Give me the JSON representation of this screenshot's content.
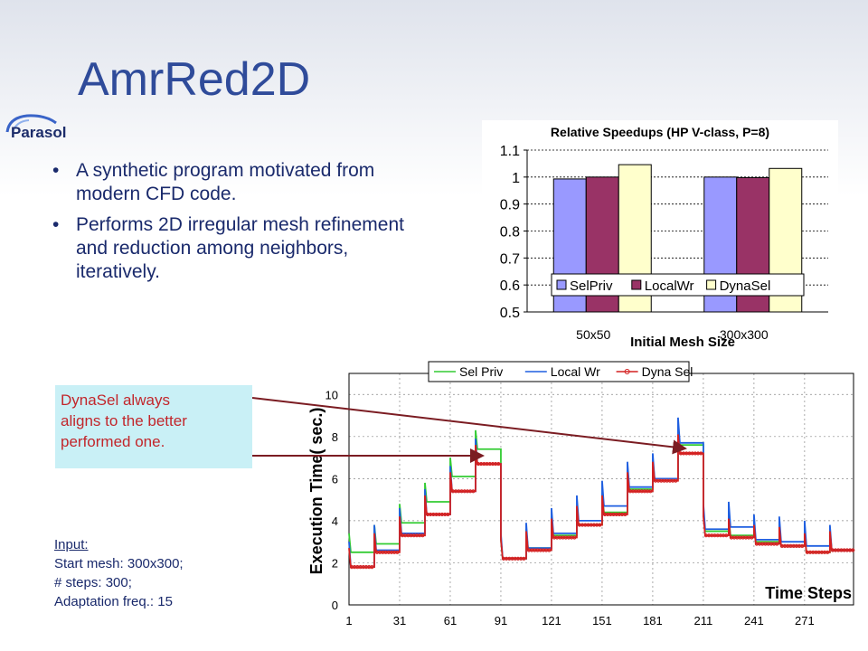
{
  "slide": {
    "title": "AmrRed2D",
    "logo_text": "Parasol",
    "bullets": [
      "A synthetic program motivated from modern CFD code.",
      "Performs 2D irregular mesh refinement and reduction among neighbors, iteratively."
    ],
    "bullet_char": "•",
    "callout": [
      "DynaSel always",
      "aligns to the better",
      "performed one."
    ],
    "input": {
      "title": "Input:",
      "lines": [
        "Start mesh: 300x300;",
        "# steps: 300;",
        "Adaptation freq.: 15"
      ]
    }
  },
  "colors": {
    "title": "#2f4b9a",
    "text": "#1a2a6c",
    "callout_bg": "#c9f0f6",
    "callout_text": "#c2262b",
    "arrow": "#7b1c22"
  },
  "chart_data": [
    {
      "type": "bar",
      "title": "Relative Speedups (HP V-class, P=8)",
      "xlabel": "Initial Mesh Size",
      "ylabel": "",
      "categories": [
        "50x50",
        "300x300"
      ],
      "series": [
        {
          "name": "SelPriv",
          "color": "#9999ff",
          "values": [
            0.993,
            1.0
          ]
        },
        {
          "name": "LocalWr",
          "color": "#993366",
          "values": [
            1.0,
            0.998
          ]
        },
        {
          "name": "DynaSel",
          "color": "#ffffcc",
          "values": [
            1.046,
            1.032
          ]
        }
      ],
      "ylim": [
        0.5,
        1.1
      ],
      "yticks": [
        "0.5",
        "0.6",
        "0.7",
        "0.8",
        "0.9",
        "1",
        "1.1"
      ],
      "grid": true,
      "legend": "bottom-inside"
    },
    {
      "type": "line",
      "title": "",
      "xlabel": "Time Steps",
      "ylabel": "Execution Time( sec.)",
      "xlim": [
        1,
        300
      ],
      "ylim": [
        0,
        11
      ],
      "xticks": [
        "1",
        "31",
        "61",
        "91",
        "121",
        "151",
        "181",
        "211",
        "241",
        "271"
      ],
      "yticks": [
        "0",
        "2",
        "4",
        "6",
        "8",
        "10"
      ],
      "grid": true,
      "legend": "top",
      "series": [
        {
          "name": "Sel Priv",
          "color": "#33cc33",
          "steps": [
            [
              1,
              2.5
            ],
            [
              16,
              2.9
            ],
            [
              31,
              3.9
            ],
            [
              46,
              4.9
            ],
            [
              61,
              6.1
            ],
            [
              76,
              7.4
            ],
            [
              91,
              2.2
            ],
            [
              106,
              2.7
            ],
            [
              121,
              3.3
            ],
            [
              136,
              3.8
            ],
            [
              151,
              4.4
            ],
            [
              166,
              5.5
            ],
            [
              181,
              6.0
            ],
            [
              196,
              7.6
            ],
            [
              211,
              3.5
            ],
            [
              226,
              3.3
            ],
            [
              241,
              3.0
            ],
            [
              256,
              2.8
            ],
            [
              271,
              2.5
            ],
            [
              286,
              2.6
            ]
          ]
        },
        {
          "name": "Local Wr",
          "color": "#1f5fe0",
          "steps": [
            [
              1,
              1.8
            ],
            [
              16,
              2.6
            ],
            [
              31,
              3.4
            ],
            [
              46,
              4.3
            ],
            [
              61,
              5.4
            ],
            [
              76,
              6.7
            ],
            [
              91,
              2.2
            ],
            [
              106,
              2.7
            ],
            [
              121,
              3.4
            ],
            [
              136,
              4.0
            ],
            [
              151,
              4.7
            ],
            [
              166,
              5.6
            ],
            [
              181,
              6.0
            ],
            [
              196,
              7.7
            ],
            [
              211,
              3.6
            ],
            [
              226,
              3.7
            ],
            [
              241,
              3.1
            ],
            [
              256,
              3.0
            ],
            [
              271,
              2.8
            ],
            [
              286,
              2.6
            ]
          ]
        },
        {
          "name": "Dyna Sel",
          "color": "#d42020",
          "steps": [
            [
              1,
              1.8
            ],
            [
              16,
              2.5
            ],
            [
              31,
              3.3
            ],
            [
              46,
              4.3
            ],
            [
              61,
              5.4
            ],
            [
              76,
              6.7
            ],
            [
              91,
              2.2
            ],
            [
              106,
              2.6
            ],
            [
              121,
              3.2
            ],
            [
              136,
              3.8
            ],
            [
              151,
              4.3
            ],
            [
              166,
              5.4
            ],
            [
              181,
              5.9
            ],
            [
              196,
              7.2
            ],
            [
              211,
              3.3
            ],
            [
              226,
              3.2
            ],
            [
              241,
              2.9
            ],
            [
              256,
              2.8
            ],
            [
              271,
              2.5
            ],
            [
              286,
              2.6
            ]
          ]
        }
      ]
    }
  ]
}
